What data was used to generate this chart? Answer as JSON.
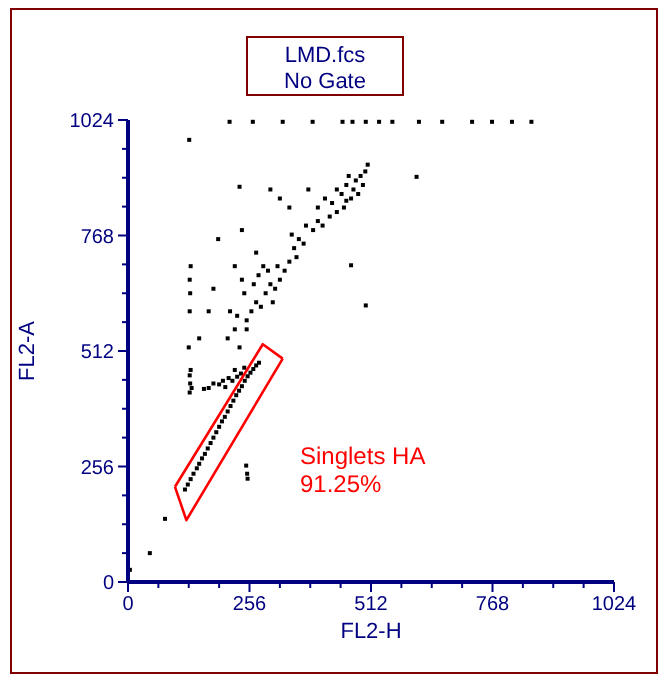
{
  "chart_data": {
    "type": "scatter",
    "title": "LMD.fcs",
    "subtitle": "No Gate",
    "xlabel": "FL2-H",
    "ylabel": "FL2-A",
    "xlim": [
      0,
      1024
    ],
    "ylim": [
      0,
      1024
    ],
    "xticks": [
      0,
      {
        "value": 64,
        "label": null
      },
      {
        "value": 128,
        "label": null
      },
      {
        "value": 192,
        "label": null
      },
      256,
      {
        "value": 320,
        "label": null
      },
      {
        "value": 384,
        "label": null
      },
      {
        "value": 448,
        "label": null
      },
      512,
      {
        "value": 576,
        "label": null
      },
      {
        "value": 640,
        "label": null
      },
      {
        "value": 704,
        "label": null
      },
      768,
      {
        "value": 832,
        "label": null
      },
      {
        "value": 896,
        "label": null
      },
      {
        "value": 960,
        "label": null
      },
      1024
    ],
    "yticks": [
      0,
      {
        "value": 64,
        "label": null
      },
      {
        "value": 128,
        "label": null
      },
      {
        "value": 192,
        "label": null
      },
      256,
      {
        "value": 320,
        "label": null
      },
      {
        "value": 384,
        "label": null
      },
      {
        "value": 448,
        "label": null
      },
      512,
      {
        "value": 576,
        "label": null
      },
      {
        "value": 640,
        "label": null
      },
      {
        "value": 704,
        "label": null
      },
      768,
      {
        "value": 832,
        "label": null
      },
      {
        "value": 896,
        "label": null
      },
      {
        "value": 960,
        "label": null
      },
      1024
    ],
    "grid": false,
    "annotations": [
      "Singlets HA\n91.25%"
    ],
    "series": [
      {
        "color": "#000000",
        "marker": "square",
        "x": [
          120,
          126,
          132,
          138,
          145,
          150,
          156,
          162,
          168,
          174,
          180,
          186,
          192,
          198,
          204,
          210,
          216,
          222,
          228,
          234,
          240,
          246,
          252,
          258,
          264,
          270,
          276,
          180,
          192,
          200,
          212,
          220,
          230,
          238,
          170,
          160,
          205,
          225,
          245,
          130,
          131,
          130,
          132,
          128,
          130,
          131,
          130,
          132,
          129,
          134,
          4,
          46,
          78,
          249,
          252,
          251,
          210,
          225,
          235,
          250,
          260,
          270,
          280,
          290,
          300,
          310,
          320,
          330,
          315,
          295,
          275,
          240,
          245,
          265,
          285,
          305,
          250,
          230,
          215,
          340,
          350,
          360,
          345,
          370,
          375,
          355,
          390,
          400,
          400,
          415,
          430,
          440,
          450,
          460,
          470,
          480,
          490,
          500,
          495,
          485,
          465,
          455,
          440,
          425,
          410,
          505,
          475,
          460,
          235,
          240,
          300,
          320,
          270,
          225,
          190,
          150,
          170,
          180,
          340,
          380,
          501,
          608,
          470,
          214,
          263,
          326,
          389,
          452,
          473,
          501,
          529,
          557,
          613,
          662,
          725,
          767,
          809,
          850
        ],
        "values": [
          205,
          216,
          228,
          240,
          252,
          262,
          274,
          284,
          296,
          308,
          320,
          332,
          344,
          356,
          366,
          378,
          390,
          402,
          414,
          424,
          434,
          446,
          456,
          464,
          472,
          480,
          486,
          440,
          438,
          446,
          452,
          446,
          455,
          462,
          430,
          428,
          432,
          470,
          475,
          420,
          440,
          458,
          470,
          520,
          600,
          640,
          670,
          700,
          980,
          430,
          27,
          64,
          140,
          258,
          229,
          240,
          540,
          560,
          520,
          580,
          600,
          620,
          610,
          640,
          660,
          650,
          670,
          690,
          700,
          690,
          680,
          670,
          640,
          660,
          700,
          620,
          560,
          590,
          600,
          710,
          740,
          760,
          770,
          750,
          790,
          720,
          780,
          800,
          830,
          850,
          840,
          870,
          860,
          880,
          850,
          890,
          900,
          910,
          880,
          860,
          900,
          830,
          820,
          810,
          790,
          925,
          870,
          845,
          876,
          780,
          870,
          850,
          730,
          700,
          760,
          540,
          600,
          650,
          830,
          870,
          613,
          898,
          702,
          1020,
          1020,
          1020,
          1020,
          1020,
          1020,
          1020,
          1020,
          1020,
          1020,
          1020,
          1020,
          1020,
          1020,
          1020
        ]
      },
      {
        "type": "line",
        "color": "#ff0000",
        "x": [
          99,
          123,
          326
        ],
        "values": [
          211,
          137,
          495
        ]
      },
      {
        "type": "line",
        "color": "#ff0000",
        "x": [
          99,
          284,
          326
        ],
        "values": [
          211,
          527,
          495
        ]
      }
    ]
  }
}
